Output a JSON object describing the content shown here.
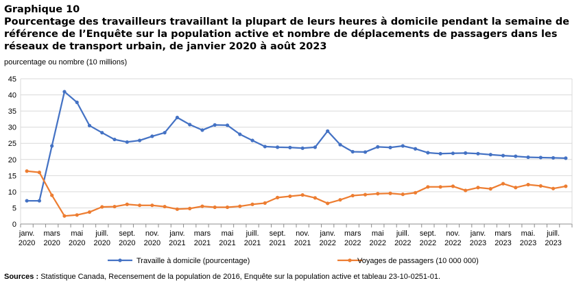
{
  "header": {
    "label": "Graphique 10",
    "title": "Pourcentage des travailleurs travaillant la plupart de leurs heures à domicile pendant la semaine de référence de l’Enquête sur la population active et nombre de déplacements de passagers dans les réseaux de transport urbain, de janvier 2020 à août 2023"
  },
  "footer": {
    "source_label": "Sources :",
    "source_text": " Statistique Canada, Recensement de la population de 2016, Enquête sur la population active et tableau 23-10-0251-01."
  },
  "colors": {
    "blue": "#4472c4",
    "orange": "#ed7d31",
    "axis": "#8c8c8c",
    "grid": "#d9d9d9"
  },
  "chart_data": {
    "type": "line",
    "ylabel": "pourcentage ou nombre (10 millions)",
    "ylim": [
      0,
      45
    ],
    "yticks": [
      0,
      5,
      10,
      15,
      20,
      25,
      30,
      35,
      40,
      45
    ],
    "grid": true,
    "legend_position": "bottom",
    "x_labels": [
      [
        "janv.",
        "2020"
      ],
      [
        "mars",
        "2020"
      ],
      [
        "mai",
        "2020"
      ],
      [
        "juill.",
        "2020"
      ],
      [
        "sept.",
        "2020"
      ],
      [
        "nov.",
        "2020"
      ],
      [
        "janv.",
        "2021"
      ],
      [
        "mars",
        "2021"
      ],
      [
        "mai",
        "2021"
      ],
      [
        "juill.",
        "2021"
      ],
      [
        "sept.",
        "2021"
      ],
      [
        "nov.",
        "2021"
      ],
      [
        "janv.",
        "2022"
      ],
      [
        "mars",
        "2022"
      ],
      [
        "mai",
        "2022"
      ],
      [
        "juill.",
        "2022"
      ],
      [
        "sept.",
        "2022"
      ],
      [
        "nov.",
        "2022"
      ],
      [
        "janv.",
        "2023"
      ],
      [
        "mars",
        "2023"
      ],
      [
        "mai.",
        "2023"
      ],
      [
        "juill.",
        "2023"
      ]
    ],
    "x": [
      "2020-01",
      "2020-02",
      "2020-03",
      "2020-04",
      "2020-05",
      "2020-06",
      "2020-07",
      "2020-08",
      "2020-09",
      "2020-10",
      "2020-11",
      "2020-12",
      "2021-01",
      "2021-02",
      "2021-03",
      "2021-04",
      "2021-05",
      "2021-06",
      "2021-07",
      "2021-08",
      "2021-09",
      "2021-10",
      "2021-11",
      "2021-12",
      "2022-01",
      "2022-02",
      "2022-03",
      "2022-04",
      "2022-05",
      "2022-06",
      "2022-07",
      "2022-08",
      "2022-09",
      "2022-10",
      "2022-11",
      "2022-12",
      "2023-01",
      "2023-02",
      "2023-03",
      "2023-04",
      "2023-05",
      "2023-06",
      "2023-07",
      "2023-08"
    ],
    "series": [
      {
        "name": "Travaille à domicile (pourcentage)",
        "color": "#4472c4",
        "values": [
          7.2,
          7.2,
          24.2,
          41.0,
          37.7,
          30.5,
          28.3,
          26.2,
          25.4,
          25.9,
          27.2,
          28.3,
          33.0,
          30.8,
          29.1,
          30.7,
          30.6,
          27.8,
          25.9,
          24.0,
          23.8,
          23.7,
          23.5,
          23.8,
          28.8,
          24.6,
          22.4,
          22.3,
          23.9,
          23.7,
          24.2,
          23.3,
          22.1,
          21.8,
          21.9,
          22.0,
          21.8,
          21.5,
          21.2,
          21.0,
          20.7,
          20.6,
          20.5,
          20.4
        ]
      },
      {
        "name": "Voyages de passagers (10 000 000)",
        "color": "#ed7d31",
        "values": [
          16.4,
          16.0,
          8.9,
          2.5,
          2.8,
          3.7,
          5.3,
          5.4,
          6.1,
          5.8,
          5.8,
          5.4,
          4.6,
          4.8,
          5.5,
          5.2,
          5.2,
          5.5,
          6.1,
          6.5,
          8.2,
          8.6,
          9.0,
          8.1,
          6.4,
          7.5,
          8.8,
          9.1,
          9.4,
          9.5,
          9.2,
          9.7,
          11.5,
          11.5,
          11.7,
          10.4,
          11.3,
          10.9,
          12.5,
          11.3,
          12.2,
          11.8,
          11.0,
          11.7
        ]
      }
    ]
  }
}
